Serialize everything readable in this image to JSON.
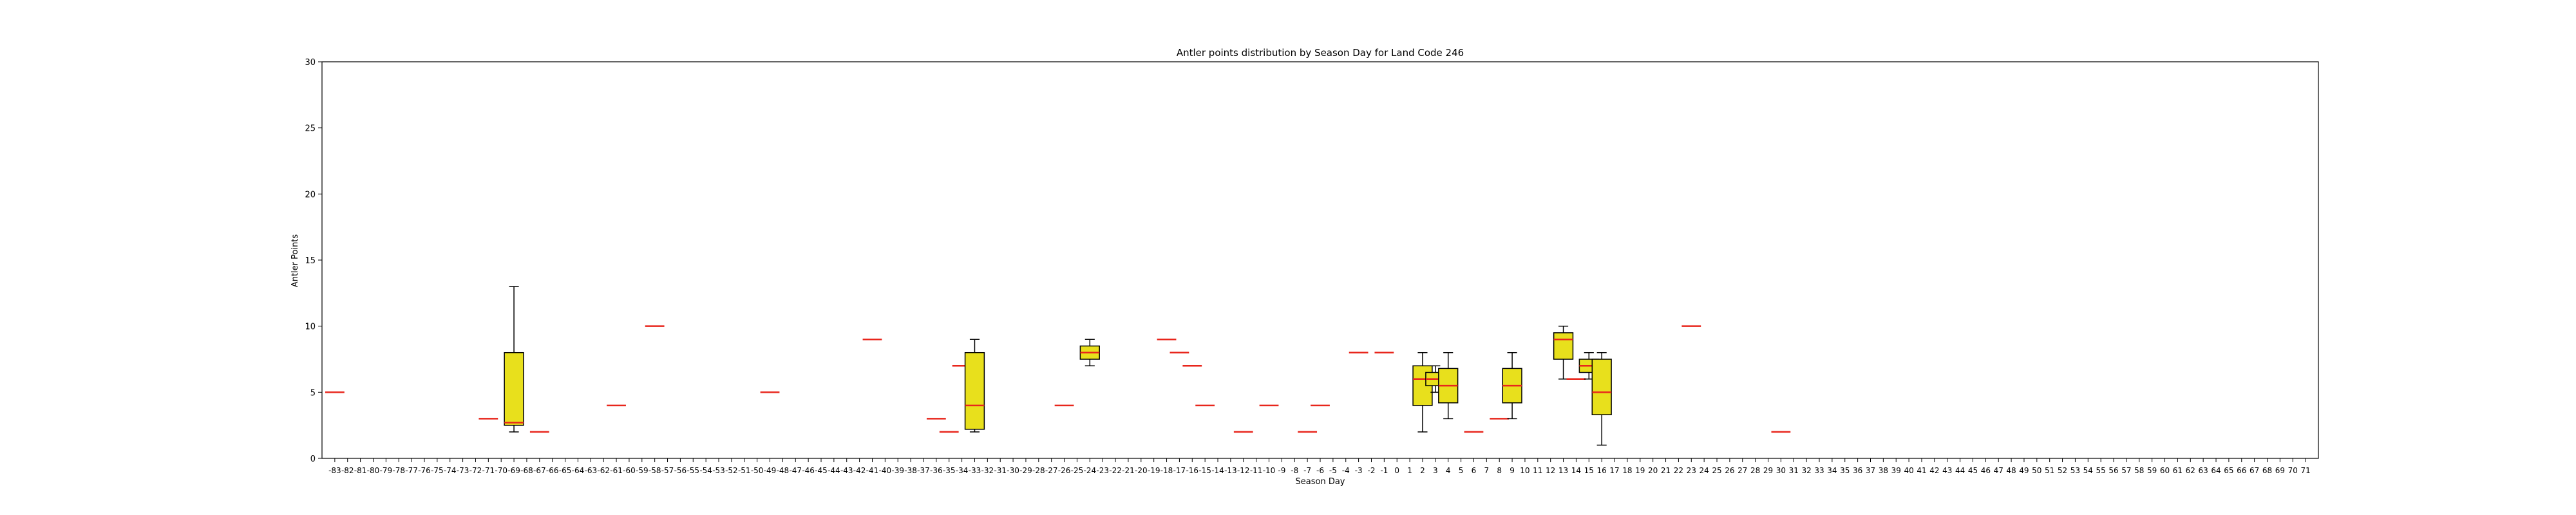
{
  "chart_data": {
    "type": "boxplot",
    "title": "Antler points distribution by Season Day for Land Code 246",
    "xlabel": "Season Day",
    "ylabel": "Antler Points",
    "ylim": [
      0,
      30
    ],
    "yticks": [
      0,
      5,
      10,
      15,
      20,
      25,
      30
    ],
    "x_categories_range": [
      -83,
      71
    ],
    "grid": false,
    "legend": "none",
    "colors": {
      "box_fill": "#e8e01c",
      "median": "#e8261c",
      "outline": "#000000"
    },
    "boxes": [
      {
        "day": -83,
        "min": 5,
        "q1": 5,
        "median": 5,
        "q3": 5,
        "max": 5
      },
      {
        "day": -71,
        "min": 3,
        "q1": 3,
        "median": 3,
        "q3": 3,
        "max": 3
      },
      {
        "day": -69,
        "min": 2,
        "q1": 2.5,
        "median": 2.7,
        "q3": 8,
        "max": 13
      },
      {
        "day": -67,
        "min": 2,
        "q1": 2,
        "median": 2,
        "q3": 2,
        "max": 2
      },
      {
        "day": -61,
        "min": 4,
        "q1": 4,
        "median": 4,
        "q3": 4,
        "max": 4
      },
      {
        "day": -58,
        "min": 10,
        "q1": 10,
        "median": 10,
        "q3": 10,
        "max": 10
      },
      {
        "day": -49,
        "min": 5,
        "q1": 5,
        "median": 5,
        "q3": 5,
        "max": 5
      },
      {
        "day": -41,
        "min": 9,
        "q1": 9,
        "median": 9,
        "q3": 9,
        "max": 9
      },
      {
        "day": -36,
        "min": 3,
        "q1": 3,
        "median": 3,
        "q3": 3,
        "max": 3
      },
      {
        "day": -35,
        "min": 2,
        "q1": 2,
        "median": 2,
        "q3": 2,
        "max": 2
      },
      {
        "day": -34,
        "min": 7,
        "q1": 7,
        "median": 7,
        "q3": 7,
        "max": 7
      },
      {
        "day": -33,
        "min": 2,
        "q1": 2.2,
        "median": 4,
        "q3": 8,
        "max": 9
      },
      {
        "day": -26,
        "min": 4,
        "q1": 4,
        "median": 4,
        "q3": 4,
        "max": 4
      },
      {
        "day": -24,
        "min": 7,
        "q1": 7.5,
        "median": 8,
        "q3": 8.5,
        "max": 9
      },
      {
        "day": -18,
        "min": 9,
        "q1": 9,
        "median": 9,
        "q3": 9,
        "max": 9
      },
      {
        "day": -17,
        "min": 8,
        "q1": 8,
        "median": 8,
        "q3": 8,
        "max": 8
      },
      {
        "day": -16,
        "min": 7,
        "q1": 7,
        "median": 7,
        "q3": 7,
        "max": 7
      },
      {
        "day": -15,
        "min": 4,
        "q1": 4,
        "median": 4,
        "q3": 4,
        "max": 4
      },
      {
        "day": -12,
        "min": 2,
        "q1": 2,
        "median": 2,
        "q3": 2,
        "max": 2
      },
      {
        "day": -10,
        "min": 4,
        "q1": 4,
        "median": 4,
        "q3": 4,
        "max": 4
      },
      {
        "day": -7,
        "min": 2,
        "q1": 2,
        "median": 2,
        "q3": 2,
        "max": 2
      },
      {
        "day": -6,
        "min": 4,
        "q1": 4,
        "median": 4,
        "q3": 4,
        "max": 4
      },
      {
        "day": -3,
        "min": 8,
        "q1": 8,
        "median": 8,
        "q3": 8,
        "max": 8
      },
      {
        "day": -1,
        "min": 8,
        "q1": 8,
        "median": 8,
        "q3": 8,
        "max": 8
      },
      {
        "day": 2,
        "min": 2,
        "q1": 4,
        "median": 6,
        "q3": 7,
        "max": 8
      },
      {
        "day": 3,
        "min": 5,
        "q1": 5.5,
        "median": 6,
        "q3": 6.5,
        "max": 7
      },
      {
        "day": 4,
        "min": 3,
        "q1": 4.2,
        "median": 5.5,
        "q3": 6.8,
        "max": 8
      },
      {
        "day": 6,
        "min": 2,
        "q1": 2,
        "median": 2,
        "q3": 2,
        "max": 2
      },
      {
        "day": 8,
        "min": 3,
        "q1": 3,
        "median": 3,
        "q3": 3,
        "max": 3
      },
      {
        "day": 9,
        "min": 3,
        "q1": 4.2,
        "median": 5.5,
        "q3": 6.8,
        "max": 8
      },
      {
        "day": 13,
        "min": 6,
        "q1": 7.5,
        "median": 9,
        "q3": 9.5,
        "max": 10
      },
      {
        "day": 14,
        "min": 6,
        "q1": 6,
        "median": 6,
        "q3": 6,
        "max": 6
      },
      {
        "day": 15,
        "min": 6,
        "q1": 6.5,
        "median": 7,
        "q3": 7.5,
        "max": 8
      },
      {
        "day": 16,
        "min": 1,
        "q1": 3.3,
        "median": 5,
        "q3": 7.5,
        "max": 8
      },
      {
        "day": 23,
        "min": 10,
        "q1": 10,
        "median": 10,
        "q3": 10,
        "max": 10
      },
      {
        "day": 30,
        "min": 2,
        "q1": 2,
        "median": 2,
        "q3": 2,
        "max": 2
      }
    ]
  }
}
